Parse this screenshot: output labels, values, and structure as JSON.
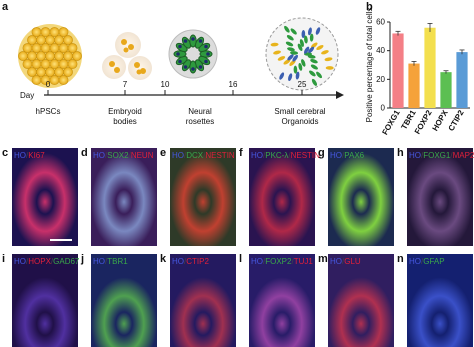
{
  "panel_a": {
    "letter": "a",
    "day_label": "Day",
    "days": [
      "0",
      "7",
      "10",
      "16",
      "25"
    ],
    "stages": [
      "hPSCs",
      "Embryoid\nbodies",
      "Neural\nrosettes",
      "Small cerebral\nOrganoids"
    ]
  },
  "chart_data": {
    "type": "bar",
    "letter": "b",
    "ylabel": "Positive percentage of total cells",
    "categories": [
      "FOXG1",
      "TBR1",
      "FOXP2",
      "HOPX",
      "CTIP2"
    ],
    "values": [
      52,
      31,
      56,
      25,
      39
    ],
    "errors": [
      1.5,
      1.5,
      3,
      1,
      1.5
    ],
    "colors": [
      "#f47f86",
      "#f5a23a",
      "#f3df4e",
      "#5cbf52",
      "#5a9bd6"
    ],
    "ylim": [
      0,
      60
    ],
    "yticks": [
      0,
      20,
      40,
      60
    ]
  },
  "panels": [
    {
      "letter": "c",
      "parts": [
        "HO",
        "/",
        "KI67"
      ],
      "colors": [
        "#4657e0",
        "#444",
        "#e0203a"
      ]
    },
    {
      "letter": "d",
      "parts": [
        "HO",
        "/",
        "SOX2",
        "/",
        "NEUN"
      ],
      "colors": [
        "#4657e0",
        "#444",
        "#3aa84a",
        "#444",
        "#e0203a"
      ]
    },
    {
      "letter": "e",
      "parts": [
        "HO",
        "/",
        "DCX",
        "/",
        "NESTIN"
      ],
      "colors": [
        "#4657e0",
        "#444",
        "#3aa84a",
        "#444",
        "#e0203a"
      ]
    },
    {
      "letter": "f",
      "parts": [
        "HO",
        "/",
        "PKC-λ",
        "/",
        "NESTIN"
      ],
      "colors": [
        "#4657e0",
        "#444",
        "#3aa84a",
        "#444",
        "#e0203a"
      ]
    },
    {
      "letter": "g",
      "parts": [
        "HO",
        "/",
        "PAX6"
      ],
      "colors": [
        "#4657e0",
        "#444",
        "#3aa84a"
      ]
    },
    {
      "letter": "h",
      "parts": [
        "HO",
        "/",
        "FOXG1",
        "/",
        "MAP2"
      ],
      "colors": [
        "#4657e0",
        "#444",
        "#3aa84a",
        "#444",
        "#e0203a"
      ]
    },
    {
      "letter": "i",
      "parts": [
        "HO",
        "/",
        "HOPX",
        "/",
        "GAD67"
      ],
      "colors": [
        "#4657e0",
        "#444",
        "#e0203a",
        "#444",
        "#3aa84a"
      ]
    },
    {
      "letter": "j",
      "parts": [
        "HO",
        "/",
        "TBR1"
      ],
      "colors": [
        "#4657e0",
        "#444",
        "#3aa84a"
      ]
    },
    {
      "letter": "k",
      "parts": [
        "HO",
        "/",
        "CTIP2"
      ],
      "colors": [
        "#4657e0",
        "#444",
        "#e0203a"
      ]
    },
    {
      "letter": "l",
      "parts": [
        "HO",
        "/",
        "FOXP2",
        "/",
        "TUJ1"
      ],
      "colors": [
        "#4657e0",
        "#444",
        "#3aa84a",
        "#444",
        "#e0203a"
      ]
    },
    {
      "letter": "m",
      "parts": [
        "HO",
        "/",
        "GLU"
      ],
      "colors": [
        "#4657e0",
        "#444",
        "#e0203a"
      ]
    },
    {
      "letter": "n",
      "parts": [
        "HO",
        "/",
        "GFAP"
      ],
      "colors": [
        "#4657e0",
        "#444",
        "#3aa84a"
      ]
    }
  ]
}
